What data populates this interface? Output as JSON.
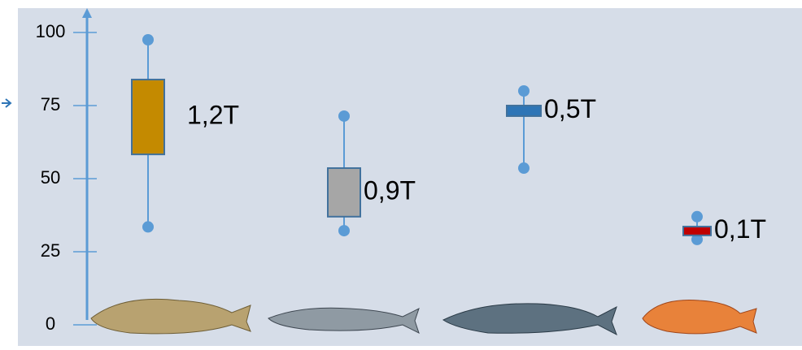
{
  "chart_data": {
    "type": "box",
    "ylim": [
      0,
      100
    ],
    "yticks": [
      0,
      25,
      50,
      75,
      100
    ],
    "axis_color": "#5b9bd5",
    "boxes": [
      {
        "low": 33.5,
        "q1": 58.3,
        "q3": 83.9,
        "high": 97.5,
        "color": "#c48a00",
        "label": "1,2T"
      },
      {
        "low": 32.2,
        "q1": 37,
        "q3": 53.6,
        "high": 71.4,
        "color": "#a6a6a6",
        "label": "0,9T"
      },
      {
        "low": 53.6,
        "q1": 71.4,
        "q3": 75,
        "high": 80,
        "color": "#2e75b6",
        "label": "0,5T"
      },
      {
        "low": 29.2,
        "q1": 30.6,
        "q3": 33.6,
        "high": 37,
        "color": "#c00000",
        "label": "0,1T"
      }
    ]
  }
}
